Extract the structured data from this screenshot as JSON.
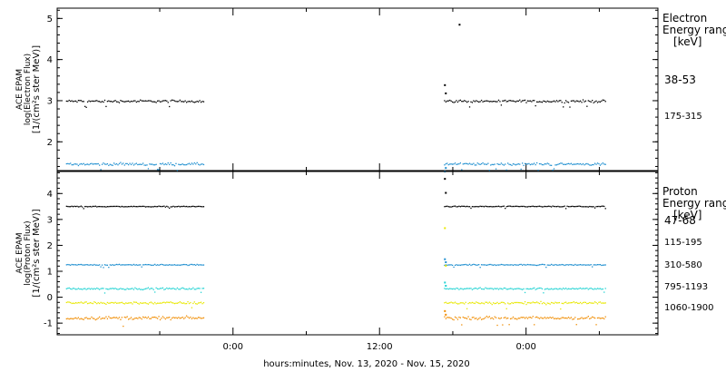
{
  "chart_data": [
    {
      "type": "scatter",
      "title": "",
      "ylabel_lines": [
        "ACE EPAM",
        "log(Electron Flux)",
        "[1/(cm²s ster MeV)]"
      ],
      "ylim": [
        1.3,
        5.25
      ],
      "yticks": [
        2,
        3,
        4,
        5
      ],
      "legend_title": [
        "Electron",
        "Energy range",
        "[keV]"
      ],
      "gap": [
        -0.1,
        0.72
      ],
      "series": [
        {
          "name": "38-53",
          "color": "#000000",
          "level": 3.0,
          "noise": 0.045,
          "spike": 3.4
        },
        {
          "name": "175-315",
          "color": "#1f8fd0",
          "level": 1.47,
          "noise": 0.045,
          "spike": 1.3
        }
      ],
      "outlier": {
        "x": 0.77,
        "y": 4.87
      }
    },
    {
      "type": "scatter",
      "title": "",
      "ylabel_lines": [
        "ACE EPAM",
        "log(Proton Flux)",
        "[1/(cm²s ster MeV)]"
      ],
      "ylim": [
        -1.45,
        4.85
      ],
      "yticks": [
        -1,
        0,
        1,
        2,
        3,
        4
      ],
      "legend_title": [
        "Proton",
        "Energy range",
        "[keV]"
      ],
      "gap": [
        -0.1,
        0.72
      ],
      "series": [
        {
          "name": "47-68",
          "color": "#000000",
          "level": 3.52,
          "noise": 0.025,
          "spike": 4.6
        },
        {
          "name": "115-195",
          "color": "#1f8fd0",
          "level": 1.27,
          "noise": 0.03,
          "spike": 1.5
        },
        {
          "name": "310-580",
          "color": "#22d3d3",
          "level": 0.35,
          "noise": 0.05,
          "spike": 0.6
        },
        {
          "name": "795-1193",
          "color": "#e8e800",
          "level": -0.2,
          "noise": 0.07,
          "spike": 2.7
        },
        {
          "name": "1060-1900",
          "color": "#f08c00",
          "level": -0.78,
          "noise": 0.09,
          "spike": -0.5
        }
      ]
    }
  ],
  "x_axis": {
    "xlim": [
      -0.6,
      1.45
    ],
    "xlabel": "hours:minutes, Nov. 13, 2020 - Nov. 15, 2020",
    "data_range": [
      -0.57,
      1.27
    ],
    "ticks": [
      {
        "x": 0.0,
        "label": "0:00"
      },
      {
        "x": 0.5,
        "label": "12:00"
      },
      {
        "x": 1.0,
        "label": "0:00"
      }
    ],
    "minor_ticks": [
      -0.25,
      0.25,
      0.75,
      1.25
    ]
  }
}
